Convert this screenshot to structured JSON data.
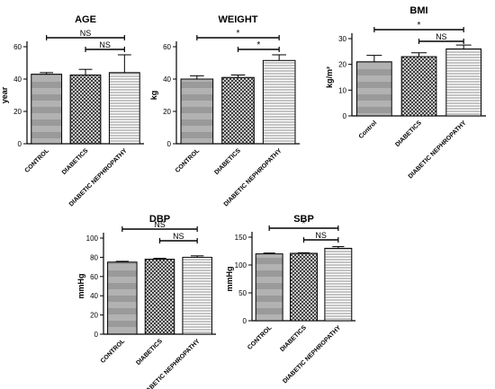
{
  "chart_data": [
    {
      "type": "bar",
      "title": "AGE",
      "ylabel": "year",
      "categories": [
        "CONTROL",
        "DIABETICS",
        "DIABETIC NEPHROPATHY"
      ],
      "values": [
        43,
        42.5,
        44
      ],
      "error": [
        1,
        3.5,
        11
      ],
      "ylim": [
        0,
        60
      ],
      "yticks": [
        0,
        20,
        40,
        60
      ],
      "significance": [
        {
          "from": 0,
          "to": 2,
          "label": "NS"
        },
        {
          "from": 1,
          "to": 2,
          "label": "NS"
        }
      ]
    },
    {
      "type": "bar",
      "title": "WEIGHT",
      "ylabel": "kg",
      "categories": [
        "CONTROL",
        "DIABETICS",
        "DIABETIC NEPHROPATHY"
      ],
      "values": [
        40,
        41,
        51.5
      ],
      "error": [
        2,
        1.5,
        3.5
      ],
      "ylim": [
        0,
        60
      ],
      "yticks": [
        0,
        20,
        40,
        60
      ],
      "significance": [
        {
          "from": 0,
          "to": 2,
          "label": "*"
        },
        {
          "from": 1,
          "to": 2,
          "label": "*"
        }
      ]
    },
    {
      "type": "bar",
      "title": "BMI",
      "ylabel": "kg/m²",
      "categories": [
        "Control",
        "DIABETICS",
        "DIABETIC NEPHROPATHY"
      ],
      "values": [
        21,
        23,
        26
      ],
      "error": [
        2.5,
        1.5,
        1.5
      ],
      "ylim": [
        0,
        30
      ],
      "yticks": [
        0,
        10,
        20,
        30
      ],
      "significance": [
        {
          "from": 0,
          "to": 2,
          "label": "*"
        },
        {
          "from": 1,
          "to": 2,
          "label": "NS"
        }
      ]
    },
    {
      "type": "bar",
      "title": "DBP",
      "ylabel": "mmHg",
      "categories": [
        "CONTROL",
        "DIABETICS",
        "DIABETIC NEPHROPATHY"
      ],
      "values": [
        75,
        78,
        80
      ],
      "error": [
        0.8,
        1,
        1.5
      ],
      "ylim": [
        0,
        100
      ],
      "yticks": [
        0,
        20,
        40,
        60,
        80,
        100
      ],
      "significance": [
        {
          "from": 0,
          "to": 2,
          "label": "NS"
        },
        {
          "from": 1,
          "to": 2,
          "label": "NS"
        }
      ]
    },
    {
      "type": "bar",
      "title": "SBP",
      "ylabel": "mmHg",
      "categories": [
        "CONTROL",
        "DIABETICS",
        "DIABETIC NEPHROPATHY"
      ],
      "values": [
        120,
        121,
        130
      ],
      "error": [
        1.5,
        1,
        3
      ],
      "ylim": [
        0,
        150
      ],
      "yticks": [
        0,
        50,
        100,
        150
      ],
      "significance": [
        {
          "from": 0,
          "to": 2,
          "label": "*"
        },
        {
          "from": 1,
          "to": 2,
          "label": "NS"
        }
      ]
    }
  ],
  "colors": {
    "axis": "#000000",
    "bar_dark": "#555555",
    "bar_light": "#e4e4e4",
    "bar_stripe": "#8a8a8a"
  }
}
